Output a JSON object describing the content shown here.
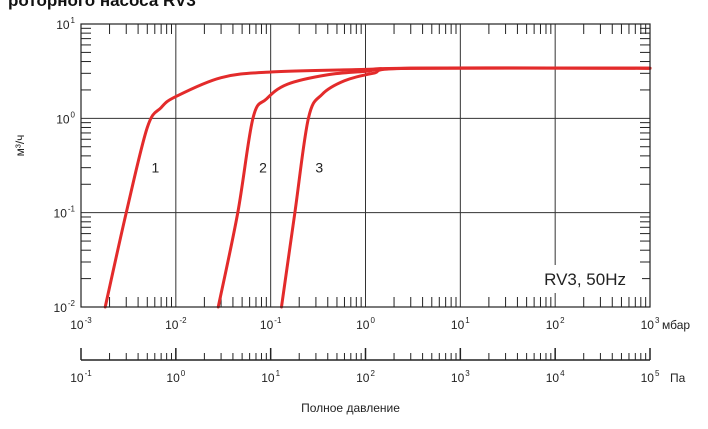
{
  "chart_data": {
    "type": "line",
    "title": "роторного насоса RV3",
    "xlabel": "Полное давление",
    "ylabel": "м³/ч",
    "x_scale": "log",
    "y_scale": "log",
    "xlim": [
      0.001,
      1000
    ],
    "ylim": [
      0.01,
      10
    ],
    "x_ticks": [
      {
        "base": "10",
        "exp": "-3"
      },
      {
        "base": "10",
        "exp": "-2"
      },
      {
        "base": "10",
        "exp": "-1"
      },
      {
        "base": "10",
        "exp": "0"
      },
      {
        "base": "10",
        "exp": "1"
      },
      {
        "base": "10",
        "exp": "2"
      },
      {
        "base": "10",
        "exp": "3"
      }
    ],
    "x_unit": "мбар",
    "x2_ticks": [
      {
        "base": "10",
        "exp": "-1"
      },
      {
        "base": "10",
        "exp": "0"
      },
      {
        "base": "10",
        "exp": "1"
      },
      {
        "base": "10",
        "exp": "2"
      },
      {
        "base": "10",
        "exp": "3"
      },
      {
        "base": "10",
        "exp": "4"
      },
      {
        "base": "10",
        "exp": "5"
      }
    ],
    "x2_unit": "Па",
    "y_ticks": [
      {
        "base": "10",
        "exp": "-2"
      },
      {
        "base": "10",
        "exp": "-1"
      },
      {
        "base": "10",
        "exp": "0"
      },
      {
        "base": "10",
        "exp": "1"
      }
    ],
    "grid": true,
    "annotation": "RV3, 50Hz",
    "series": [
      {
        "label": "1",
        "color": "#e32b2b",
        "points": [
          [
            0.0018,
            0.01
          ],
          [
            0.003,
            0.1
          ],
          [
            0.005,
            0.8
          ],
          [
            0.007,
            1.3
          ],
          [
            0.01,
            1.7
          ],
          [
            0.03,
            2.7
          ],
          [
            0.1,
            3.1
          ],
          [
            1,
            3.3
          ],
          [
            3,
            3.4
          ],
          [
            1000,
            3.4
          ]
        ]
      },
      {
        "label": "2",
        "color": "#e32b2b",
        "points": [
          [
            0.028,
            0.01
          ],
          [
            0.045,
            0.1
          ],
          [
            0.065,
            1.0
          ],
          [
            0.09,
            1.6
          ],
          [
            0.15,
            2.3
          ],
          [
            0.4,
            2.9
          ],
          [
            1,
            3.15
          ],
          [
            3,
            3.4
          ],
          [
            1000,
            3.4
          ]
        ]
      },
      {
        "label": "3",
        "color": "#e32b2b",
        "points": [
          [
            0.13,
            0.01
          ],
          [
            0.18,
            0.1
          ],
          [
            0.25,
            1.0
          ],
          [
            0.35,
            1.8
          ],
          [
            0.6,
            2.5
          ],
          [
            1.2,
            3.0
          ],
          [
            3,
            3.4
          ],
          [
            1000,
            3.4
          ]
        ]
      }
    ]
  }
}
